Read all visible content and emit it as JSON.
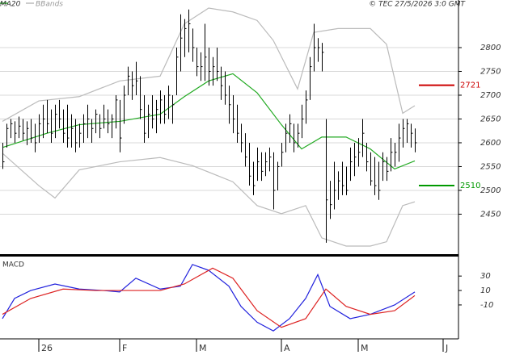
{
  "chart_data": [
    {
      "type": "ohlc",
      "source": "© TEC 27/5/2026 3:0 GMT",
      "ylim": [
        2366,
        2900
      ],
      "yticks": [
        2450,
        2500,
        2550,
        2600,
        2650,
        2700,
        2750,
        2800
      ],
      "xlim": [
        -0.6,
        112.8
      ],
      "grid": true,
      "bar_color": "#000000",
      "high": [
        2600,
        2640,
        2650,
        2645,
        2655,
        2650,
        2645,
        2650,
        2640,
        2660,
        2680,
        2690,
        2670,
        2680,
        2690,
        2670,
        2680,
        2660,
        2650,
        2640,
        2660,
        2680,
        2650,
        2670,
        2660,
        2680,
        2670,
        2660,
        2700,
        2690,
        2720,
        2760,
        2750,
        2770,
        2740,
        2700,
        2680,
        2700,
        2690,
        2710,
        2700,
        2720,
        2700,
        2800,
        2870,
        2860,
        2880,
        2840,
        2800,
        2790,
        2850,
        2800,
        2780,
        2800,
        2760,
        2750,
        2720,
        2700,
        2680,
        2640,
        2620,
        2600,
        2560,
        2590,
        2580,
        2580,
        2590,
        2580,
        2560,
        2600,
        2640,
        2660,
        2640,
        2640,
        2680,
        2710,
        2780,
        2850,
        2820,
        2810,
        2650,
        2520,
        2560,
        2540,
        2560,
        2550,
        2590,
        2600,
        2610,
        2650,
        2600,
        2580,
        2570,
        2560,
        2580,
        2570,
        2610,
        2600,
        2640,
        2650,
        2650,
        2640,
        2630
      ],
      "low": [
        2545,
        2590,
        2610,
        2600,
        2610,
        2605,
        2595,
        2600,
        2580,
        2600,
        2610,
        2620,
        2600,
        2610,
        2630,
        2600,
        2590,
        2590,
        2580,
        2590,
        2600,
        2610,
        2600,
        2620,
        2610,
        2630,
        2620,
        2610,
        2630,
        2580,
        2640,
        2700,
        2690,
        2700,
        2650,
        2600,
        2610,
        2630,
        2620,
        2640,
        2640,
        2650,
        2640,
        2700,
        2750,
        2780,
        2790,
        2770,
        2740,
        2730,
        2730,
        2720,
        2720,
        2730,
        2690,
        2680,
        2640,
        2620,
        2600,
        2580,
        2550,
        2510,
        2490,
        2520,
        2520,
        2530,
        2540,
        2460,
        2500,
        2550,
        2580,
        2600,
        2580,
        2590,
        2610,
        2640,
        2690,
        2750,
        2770,
        2750,
        2390,
        2440,
        2460,
        2480,
        2490,
        2490,
        2520,
        2530,
        2550,
        2570,
        2540,
        2510,
        2490,
        2480,
        2520,
        2520,
        2540,
        2550,
        2560,
        2590,
        2600,
        2590,
        2580
      ],
      "close": [
        2560,
        2630,
        2640,
        2620,
        2635,
        2620,
        2630,
        2610,
        2600,
        2640,
        2650,
        2640,
        2620,
        2660,
        2650,
        2620,
        2610,
        2630,
        2600,
        2620,
        2640,
        2650,
        2630,
        2660,
        2630,
        2650,
        2640,
        2650,
        2690,
        2610,
        2700,
        2740,
        2720,
        2730,
        2670,
        2620,
        2660,
        2650,
        2670,
        2690,
        2660,
        2700,
        2680,
        2780,
        2820,
        2840,
        2850,
        2800,
        2760,
        2760,
        2780,
        2750,
        2760,
        2750,
        2720,
        2700,
        2680,
        2650,
        2620,
        2600,
        2570,
        2530,
        2510,
        2560,
        2540,
        2560,
        2570,
        2500,
        2550,
        2580,
        2620,
        2640,
        2600,
        2620,
        2650,
        2690,
        2760,
        2800,
        2800,
        2790,
        2480,
        2470,
        2500,
        2520,
        2510,
        2500,
        2560,
        2570,
        2580,
        2620,
        2560,
        2520,
        2510,
        2500,
        2560,
        2540,
        2580,
        2580,
        2610,
        2630,
        2640,
        2620,
        2600
      ],
      "series": [
        {
          "name": "MA20",
          "color": "#22aa22",
          "x": [
            0,
            11,
            19,
            29,
            39,
            45,
            51,
            57,
            63,
            69,
            74,
            79,
            85,
            91,
            97,
            102
          ],
          "values": [
            2590,
            2620,
            2638,
            2645,
            2660,
            2697,
            2730,
            2745,
            2705,
            2638,
            2587,
            2612,
            2612,
            2587,
            2545,
            2562
          ]
        },
        {
          "name": "BBands",
          "color": "#bbbbbb",
          "x_upper": [
            0,
            9,
            19,
            29,
            39,
            45,
            51,
            57,
            63,
            67,
            73,
            77,
            83,
            91,
            95,
            99,
            102
          ],
          "upper": [
            2645,
            2688,
            2697,
            2730,
            2740,
            2850,
            2883,
            2875,
            2857,
            2815,
            2713,
            2832,
            2840,
            2840,
            2807,
            2662,
            2678
          ],
          "x_lower": [
            0,
            9,
            13,
            19,
            29,
            39,
            47,
            57,
            63,
            69,
            75,
            79,
            85,
            91,
            95,
            99,
            102
          ],
          "lower": [
            2578,
            2510,
            2484,
            2543,
            2560,
            2569,
            2552,
            2518,
            2468,
            2451,
            2468,
            2400,
            2383,
            2383,
            2392,
            2468,
            2476
          ]
        }
      ],
      "levels": [
        {
          "value": 2721,
          "color": "#cc0000"
        },
        {
          "value": 2510,
          "color": "#009900"
        }
      ]
    },
    {
      "type": "line",
      "title": "MACD",
      "ylim": [
        -57,
        57
      ],
      "yticks": [
        -10,
        10,
        30
      ],
      "xlim": [
        -0.6,
        112.8
      ],
      "xticks": [
        {
          "value": 9,
          "label": "26"
        },
        {
          "value": 29,
          "label": "F"
        },
        {
          "value": 48,
          "label": "M"
        },
        {
          "value": 69,
          "label": "A"
        },
        {
          "value": 88,
          "label": "M"
        },
        {
          "value": 109,
          "label": "J"
        }
      ],
      "series": [
        {
          "color": "#2222dd",
          "x": [
            0,
            3,
            7,
            13,
            19,
            25,
            29,
            33,
            39,
            44,
            47,
            51,
            56,
            59,
            63,
            67,
            71,
            75,
            78,
            81,
            86,
            91,
            97,
            102
          ],
          "values": [
            -29,
            -1,
            10,
            19,
            12,
            10,
            8,
            27,
            12,
            16,
            46,
            38,
            16,
            -12,
            -34,
            -46,
            -29,
            -1,
            32,
            -12,
            -29,
            -23,
            -10,
            8
          ]
        },
        {
          "color": "#dd2222",
          "x": [
            0,
            7,
            15,
            23,
            31,
            39,
            45,
            52,
            57,
            63,
            69,
            75,
            80,
            85,
            91,
            97,
            102
          ],
          "values": [
            -23,
            -1,
            12,
            10,
            10,
            10,
            19,
            41,
            27,
            -18,
            -41,
            -29,
            12,
            -12,
            -23,
            -18,
            3
          ]
        }
      ]
    }
  ]
}
